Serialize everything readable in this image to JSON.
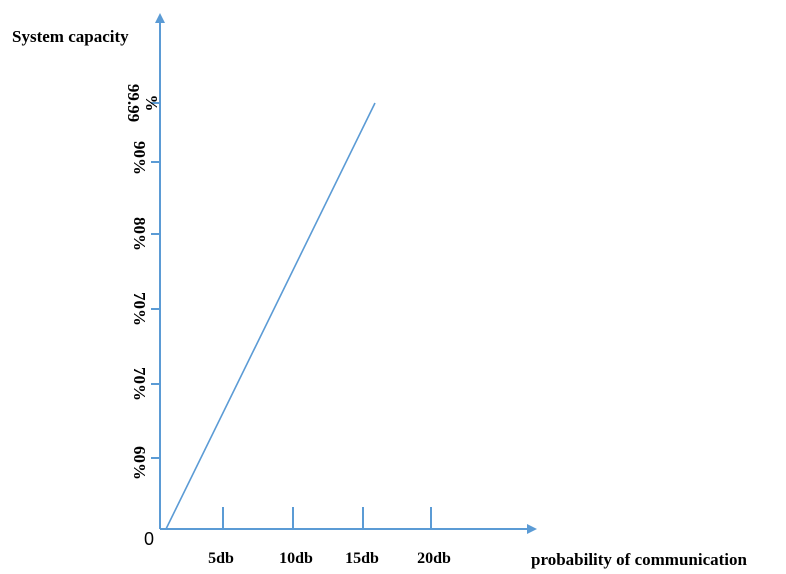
{
  "chart_data": {
    "type": "line",
    "ylabel": "System capacity",
    "xlabel": "probability of communication",
    "origin_label": "0",
    "x_ticks": [
      "5db",
      "10db",
      "15db",
      "20db"
    ],
    "y_ticks": [
      "60%",
      "70%",
      "70%",
      "80%",
      "90%",
      "99.99\n%"
    ],
    "series": [
      {
        "x": [
          "0db",
          "15db"
        ],
        "y": [
          "50%",
          "99.99%"
        ]
      }
    ],
    "grid": false,
    "legend": "none",
    "colors": {
      "axis": "#5b9bd5",
      "line": "#5b9bd5"
    }
  }
}
